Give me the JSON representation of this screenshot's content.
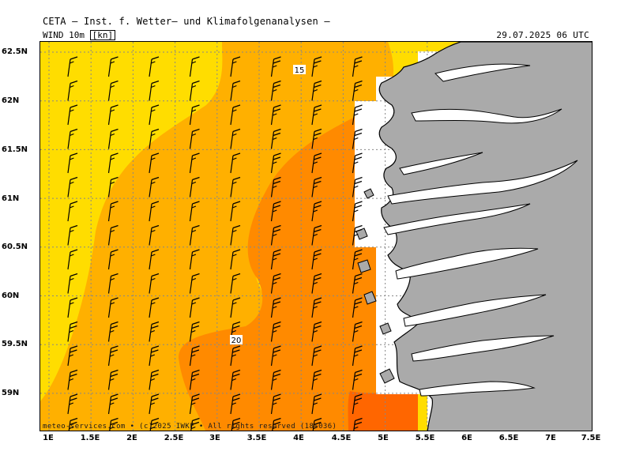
{
  "header": {
    "title": "CETA — Inst. f. Wetter— und Klimafolgenanalysen —",
    "field": "WIND 10m",
    "unit": "[kn]",
    "valid_time": "29.07.2025 06 UTC"
  },
  "footer": {
    "credit": "meteo-services.com • (c)2025 IWKF • All rights reserved (18+036)"
  },
  "map": {
    "lat_labels": [
      "62.5N",
      "62N",
      "61.5N",
      "61N",
      "60.5N",
      "60N",
      "59.5N",
      "59N"
    ],
    "lon_labels": [
      "1E",
      "1.5E",
      "2E",
      "2.5E",
      "3E",
      "3.5E",
      "4E",
      "4.5E",
      "5E",
      "5.5E",
      "6E",
      "6.5E",
      "7E",
      "7.5E"
    ],
    "contour_labels": [
      "15",
      "20"
    ],
    "colors": {
      "wind_below_15": "#ffdd00",
      "wind_15_20": "#ffb000",
      "wind_20_25": "#ff8a00",
      "wind_25_30": "#ff6600",
      "land": "#aaaaaa",
      "coast": "#000000",
      "grid": "#888888"
    },
    "wind_barb_direction": "from N",
    "wind_barb_speeds": "10-25 kn"
  }
}
